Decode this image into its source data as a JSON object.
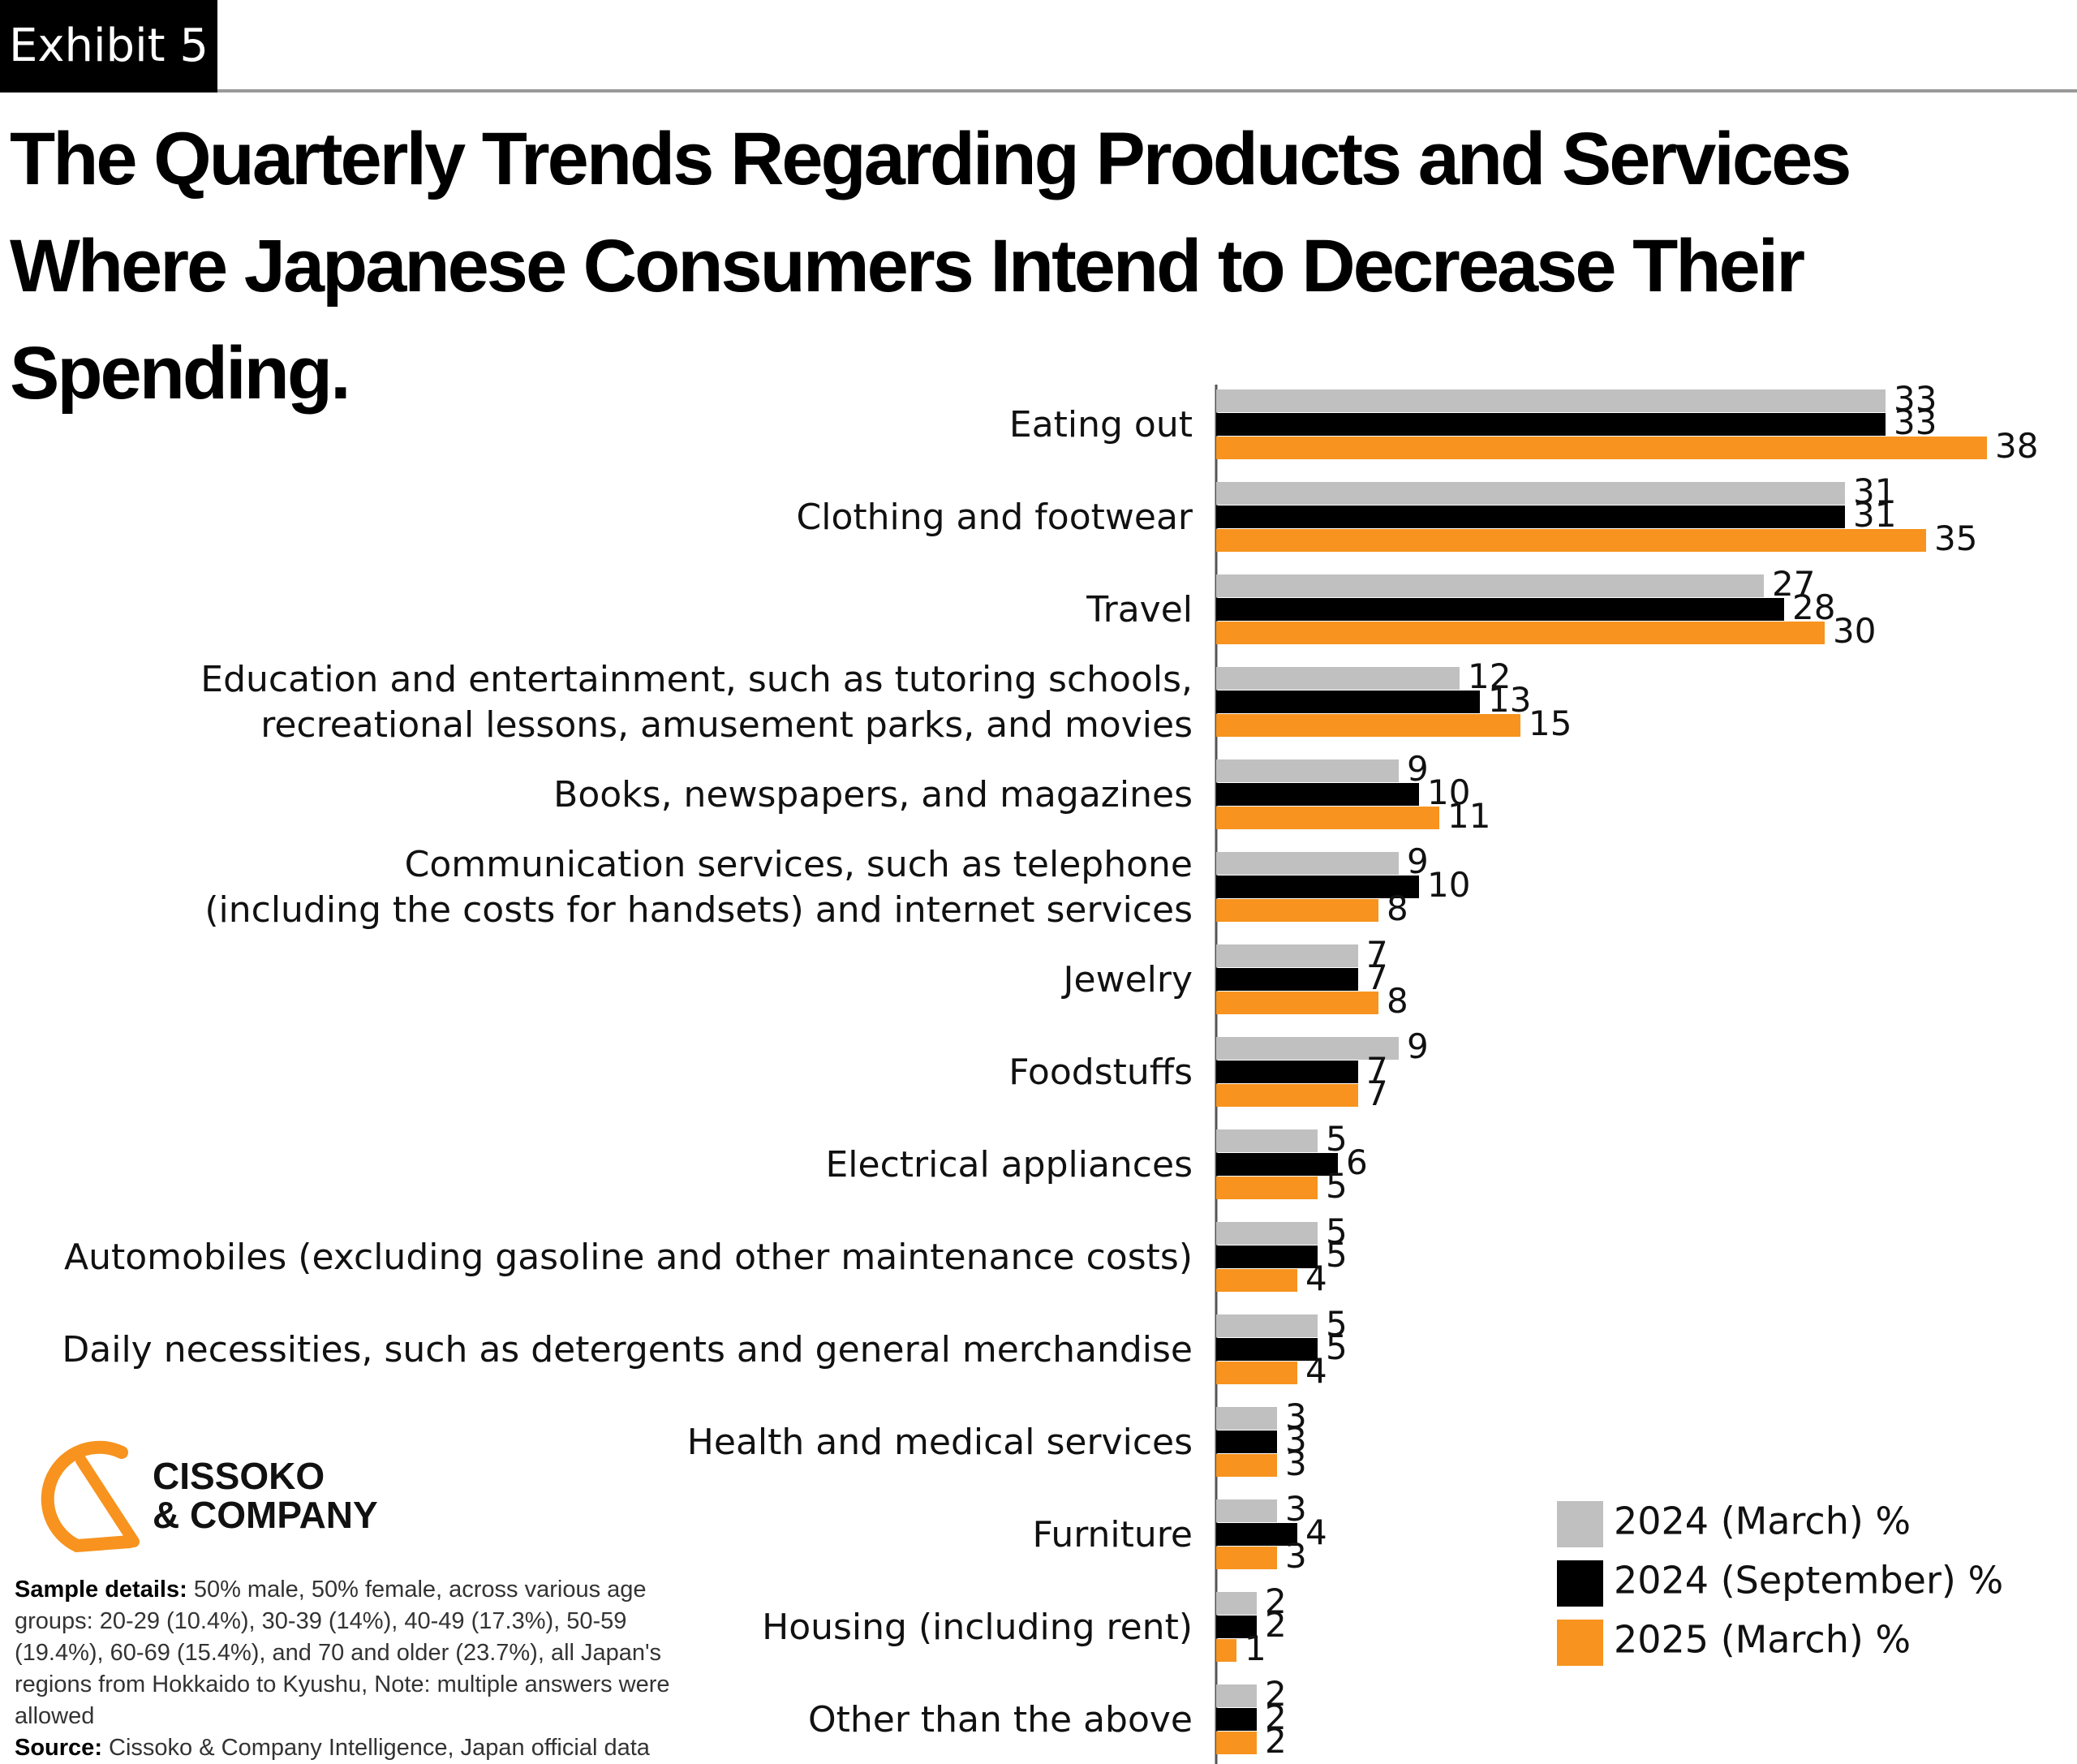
{
  "chart_data": {
    "type": "hbar",
    "exhibit": "Exhibit 5",
    "title": "The Quarterly Trends Regarding Products and Services Where Japanese Consumers Intend to Decrease Their Spending.",
    "categories": [
      "Eating out",
      "Clothing and footwear",
      "Travel",
      "Education and entertainment, such as tutoring schools,\nrecreational lessons, amusement parks, and movies",
      "Books, newspapers, and magazines",
      "Communication services, such as telephone\n(including the costs for handsets) and internet services",
      "Jewelry",
      "Foodstuffs",
      "Electrical appliances",
      "Automobiles (excluding gasoline and other maintenance costs)",
      "Daily necessities, such as detergents and general merchandise",
      "Health and medical services",
      "Furniture",
      "Housing (including rent)",
      "Other than the above"
    ],
    "series": [
      {
        "name": "2024 (March) %",
        "color": "#c0c0c0",
        "values": [
          33,
          31,
          27,
          12,
          9,
          9,
          7,
          9,
          5,
          5,
          5,
          3,
          3,
          2,
          2
        ]
      },
      {
        "name": "2024 (September) %",
        "color": "#000000",
        "values": [
          33,
          31,
          28,
          13,
          10,
          10,
          7,
          7,
          6,
          5,
          5,
          3,
          4,
          2,
          2
        ]
      },
      {
        "name": "2025 (March) %",
        "color": "#f7931e",
        "values": [
          38,
          35,
          30,
          15,
          11,
          8,
          8,
          7,
          5,
          4,
          4,
          3,
          3,
          1,
          2
        ]
      }
    ],
    "logo_text": [
      "CISSOKO",
      "& COMPANY"
    ],
    "sample_details_label": "Sample details:",
    "sample_details": "50% male, 50% female, across various age groups: 20-29 (10.4%), 30-39 (14%), 40-49 (17.3%), 50-59 (19.4%), 60-69 (15.4%), and 70 and older (23.7%), all Japan's regions from Hokkaido to Kyushu, Note: multiple answers were allowed",
    "source_label": "Source:",
    "source": "Cissoko & Company Intelligence, Japan official data"
  }
}
